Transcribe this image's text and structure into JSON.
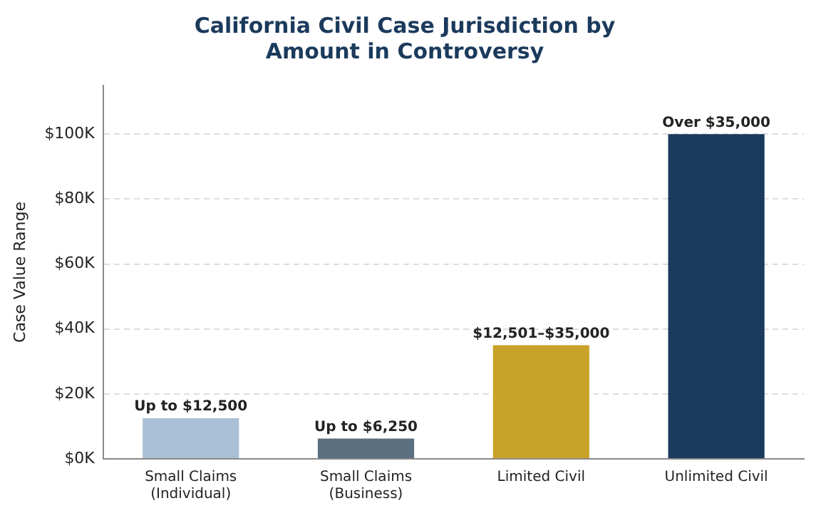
{
  "chart_data": {
    "type": "bar",
    "title": "California Civil Case Jurisdiction by\nAmount in Controversy",
    "ylabel": "Case Value Range",
    "categories": [
      "Small Claims\n(Individual)",
      "Small Claims\n(Business)",
      "Limited Civil",
      "Unlimited Civil"
    ],
    "values": [
      12500,
      6250,
      35000,
      100000
    ],
    "colors": [
      "#a9c0d6",
      "#5c6f80",
      "#c9a22a",
      "#1b3a5c"
    ],
    "value_labels": [
      "Up to $12,500",
      "Up to $6,250",
      "$12,501–$35,000",
      "Over $35,000"
    ],
    "ylim": [
      0,
      115000
    ],
    "yticks": [
      {
        "value": 0,
        "label": "$0K"
      },
      {
        "value": 20000,
        "label": "$20K"
      },
      {
        "value": 40000,
        "label": "$40K"
      },
      {
        "value": 60000,
        "label": "$60K"
      },
      {
        "value": 80000,
        "label": "$80K"
      },
      {
        "value": 100000,
        "label": "$100K"
      }
    ],
    "grid": "y",
    "legend": false
  }
}
